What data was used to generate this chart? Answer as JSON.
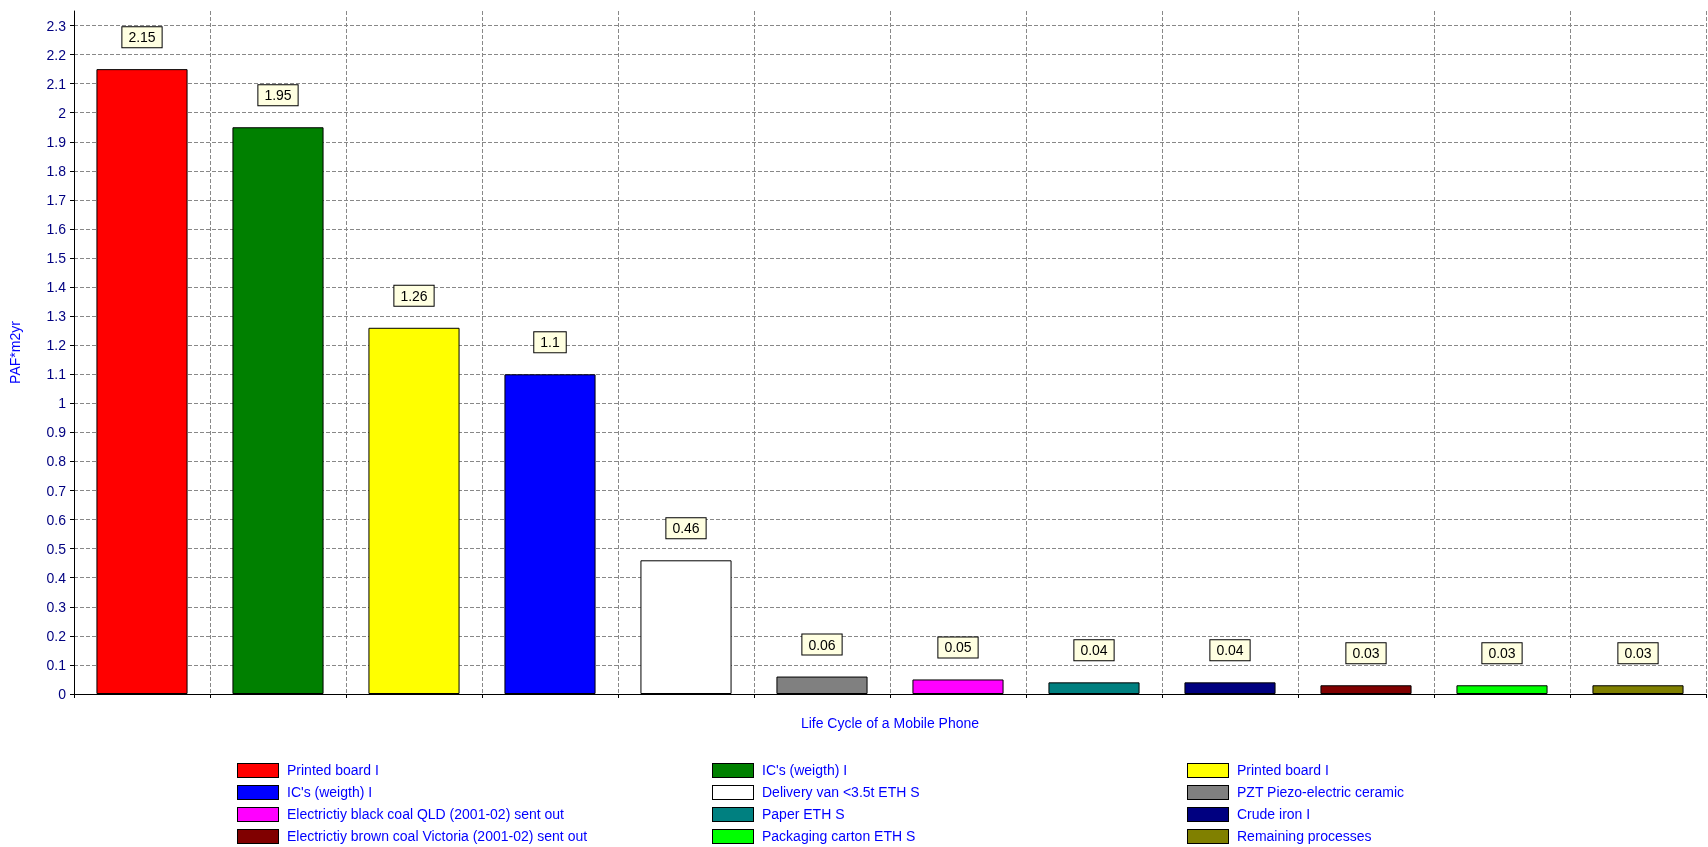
{
  "chart_data": {
    "type": "bar",
    "xlabel": "Life Cycle of a Mobile Phone",
    "ylabel": "PAF*m2yr",
    "categories": [
      null,
      null,
      null,
      null,
      null,
      null,
      null,
      null,
      null,
      null,
      null,
      null
    ],
    "series": [
      {
        "name": "Printed board I",
        "color": "#ff0000",
        "values": [
          2.15,
          null,
          null,
          null,
          null,
          null,
          null,
          null,
          null,
          null,
          null,
          null
        ]
      },
      {
        "name": "IC's (weigth) I",
        "color": "#008000",
        "values": [
          null,
          1.95,
          null,
          null,
          null,
          null,
          null,
          null,
          null,
          null,
          null,
          null
        ]
      },
      {
        "name": "Printed board I",
        "color": "#ffff00",
        "values": [
          null,
          null,
          1.26,
          null,
          null,
          null,
          null,
          null,
          null,
          null,
          null,
          null
        ]
      },
      {
        "name": "IC's (weigth) I",
        "color": "#0000ff",
        "values": [
          null,
          null,
          null,
          1.1,
          null,
          null,
          null,
          null,
          null,
          null,
          null,
          null
        ]
      },
      {
        "name": "Delivery van <3.5t ETH S",
        "color": "#ffffff",
        "values": [
          null,
          null,
          null,
          null,
          0.46,
          null,
          null,
          null,
          null,
          null,
          null,
          null
        ]
      },
      {
        "name": "PZT Piezo-electric ceramic",
        "color": "#808080",
        "values": [
          null,
          null,
          null,
          null,
          null,
          0.06,
          null,
          null,
          null,
          null,
          null,
          null
        ]
      },
      {
        "name": "Electrictiy black coal QLD (2001-02) sent out",
        "color": "#ff00ff",
        "values": [
          null,
          null,
          null,
          null,
          null,
          null,
          0.05,
          null,
          null,
          null,
          null,
          null
        ]
      },
      {
        "name": "Paper ETH S",
        "color": "#008080",
        "values": [
          null,
          null,
          null,
          null,
          null,
          null,
          null,
          0.04,
          null,
          null,
          null,
          null
        ]
      },
      {
        "name": "Crude iron I",
        "color": "#000080",
        "values": [
          null,
          null,
          null,
          null,
          null,
          null,
          null,
          null,
          0.04,
          null,
          null,
          null
        ]
      },
      {
        "name": "Electrictiy brown coal Victoria (2001-02) sent out",
        "color": "#800000",
        "values": [
          null,
          null,
          null,
          null,
          null,
          null,
          null,
          null,
          null,
          0.03,
          null,
          null
        ]
      },
      {
        "name": "Packaging carton ETH S",
        "color": "#00ff00",
        "values": [
          null,
          null,
          null,
          null,
          null,
          null,
          null,
          null,
          null,
          null,
          0.03,
          null
        ]
      },
      {
        "name": "Remaining processes",
        "color": "#808000",
        "values": [
          null,
          null,
          null,
          null,
          null,
          null,
          null,
          null,
          null,
          null,
          null,
          0.03
        ]
      }
    ],
    "ylim": [
      0,
      2.35
    ],
    "yticks": [
      0,
      0.1,
      0.2,
      0.3,
      0.4,
      0.5,
      0.6,
      0.7,
      0.8,
      0.9,
      1,
      1.1,
      1.2,
      1.3,
      1.4,
      1.5,
      1.6,
      1.7,
      1.8,
      1.9,
      2,
      2.1,
      2.2,
      2.3
    ],
    "data_labels": true,
    "grid": true,
    "legend": "bottom"
  }
}
